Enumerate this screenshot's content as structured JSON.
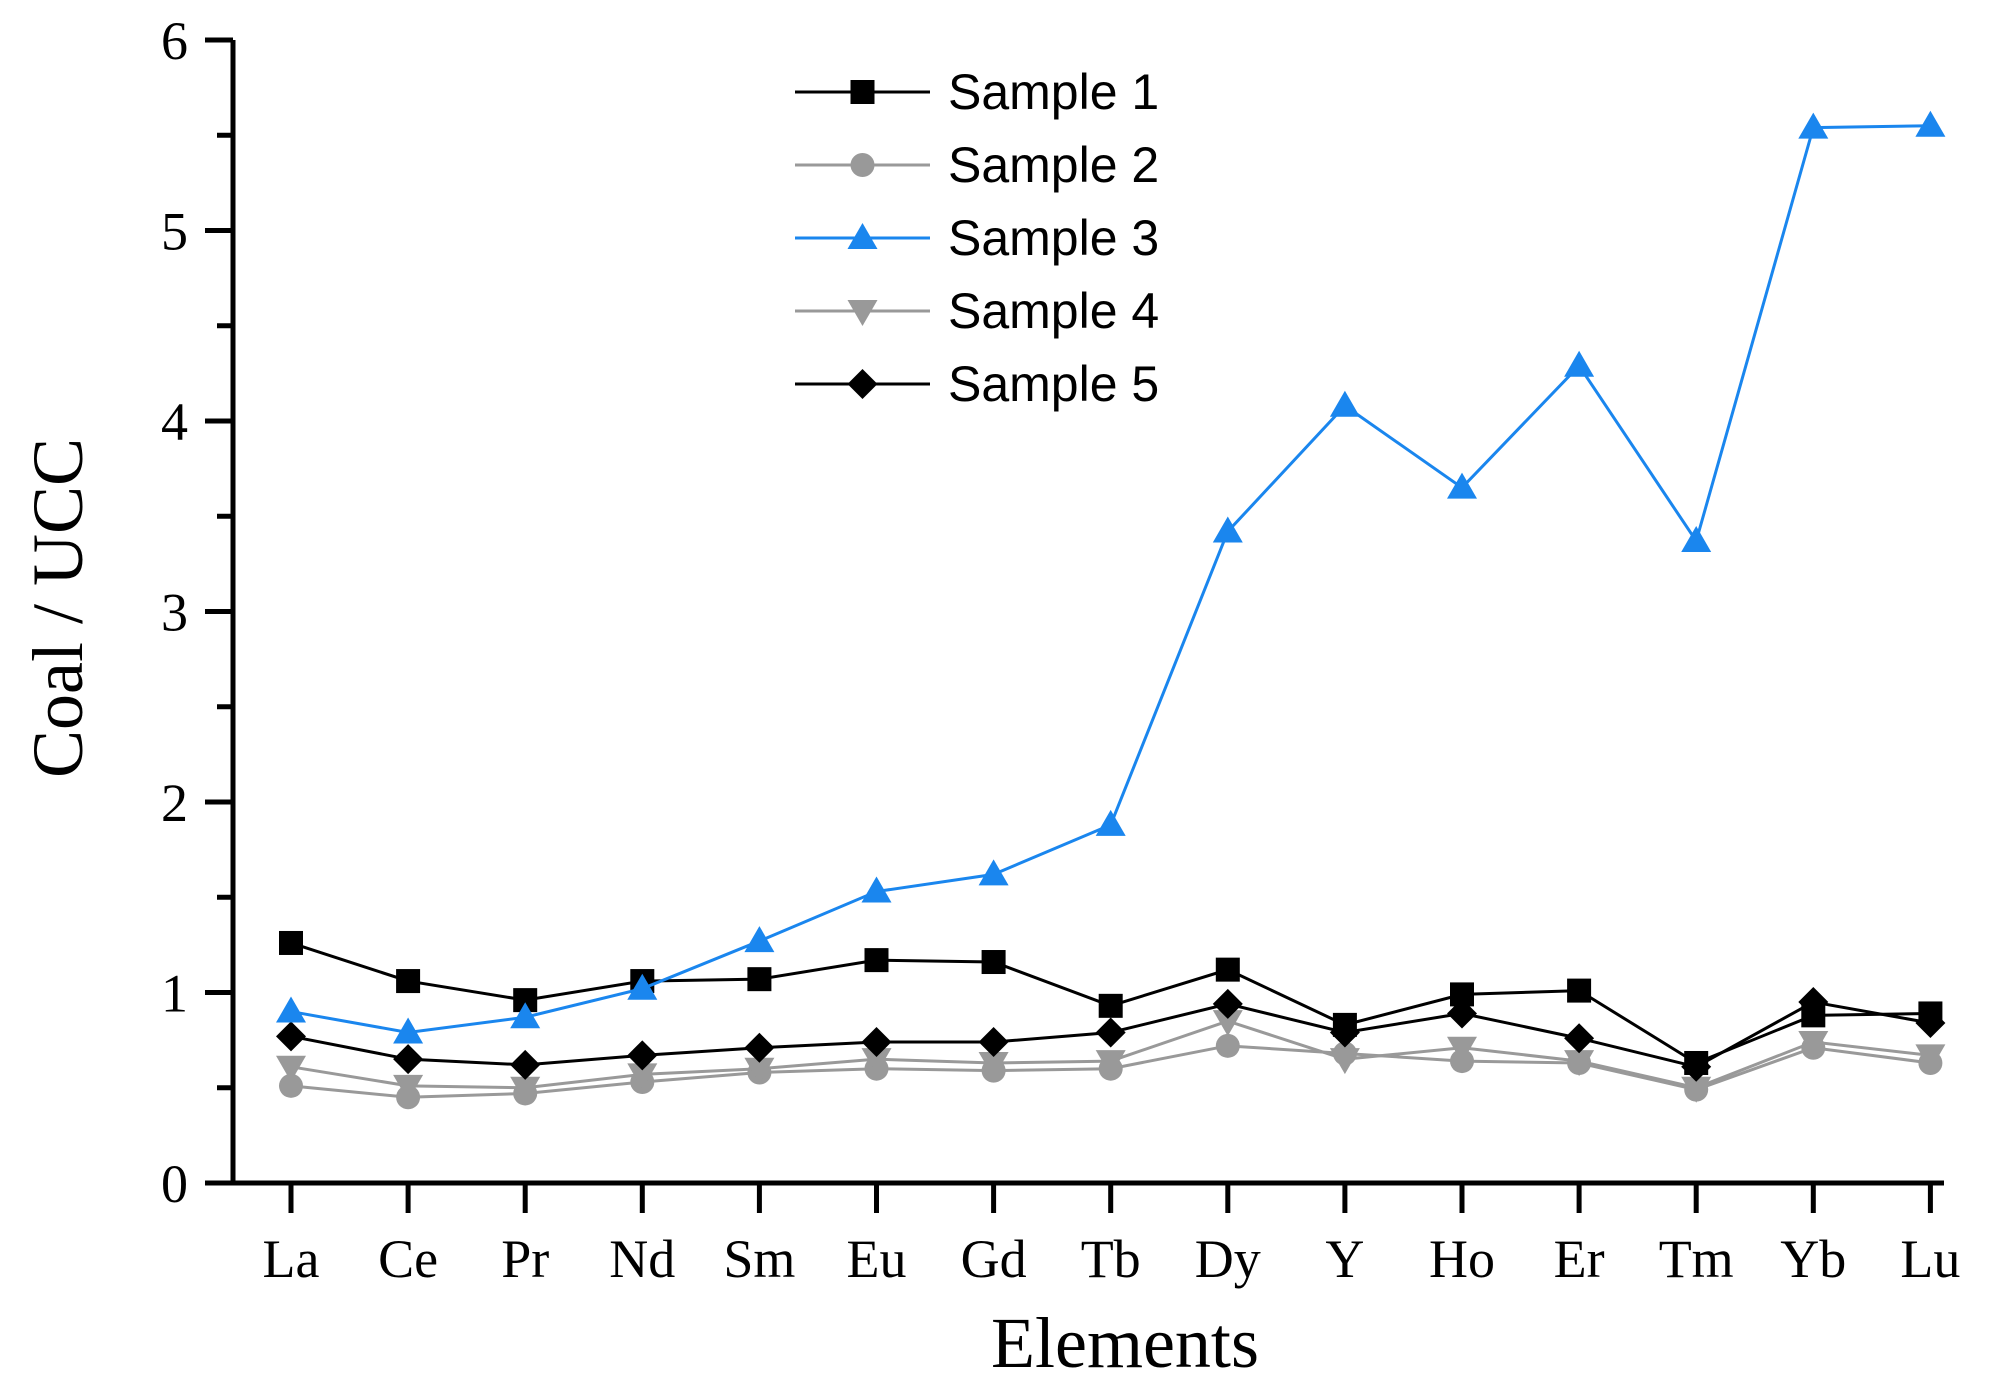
{
  "chart_data": {
    "type": "line",
    "title": "",
    "xlabel": "Elements",
    "ylabel": "Coal / UCC",
    "ylim": [
      0,
      6
    ],
    "yticks": [
      "0",
      "1",
      "2",
      "3",
      "4",
      "5",
      "6"
    ],
    "categories": [
      "La",
      "Ce",
      "Pr",
      "Nd",
      "Sm",
      "Eu",
      "Gd",
      "Tb",
      "Dy",
      "Y",
      "Ho",
      "Er",
      "Tm",
      "Yb",
      "Lu"
    ],
    "legend_position": "top-center",
    "series": [
      {
        "name": "Sample 1",
        "marker": "square",
        "color": "#000000",
        "values": [
          1.26,
          1.06,
          0.96,
          1.06,
          1.07,
          1.17,
          1.16,
          0.93,
          1.12,
          0.83,
          0.99,
          1.01,
          0.63,
          0.88,
          0.89
        ]
      },
      {
        "name": "Sample 2",
        "marker": "circle",
        "color": "#999999",
        "values": [
          0.51,
          0.45,
          0.47,
          0.53,
          0.58,
          0.6,
          0.59,
          0.6,
          0.72,
          0.68,
          0.64,
          0.63,
          0.49,
          0.71,
          0.63
        ]
      },
      {
        "name": "Sample 3",
        "marker": "triangle-up",
        "color": "#1a86ee",
        "values": [
          0.9,
          0.79,
          0.87,
          1.02,
          1.27,
          1.53,
          1.62,
          1.88,
          3.42,
          4.08,
          3.65,
          4.29,
          3.37,
          5.54,
          5.55
        ]
      },
      {
        "name": "Sample 4",
        "marker": "triangle-down",
        "color": "#999999",
        "values": [
          0.61,
          0.51,
          0.5,
          0.57,
          0.6,
          0.65,
          0.63,
          0.64,
          0.85,
          0.65,
          0.71,
          0.64,
          0.5,
          0.74,
          0.67
        ]
      },
      {
        "name": "Sample 5",
        "marker": "diamond",
        "color": "#000000",
        "values": [
          0.77,
          0.65,
          0.62,
          0.67,
          0.71,
          0.74,
          0.74,
          0.79,
          0.94,
          0.79,
          0.89,
          0.76,
          0.61,
          0.95,
          0.84
        ]
      }
    ]
  }
}
